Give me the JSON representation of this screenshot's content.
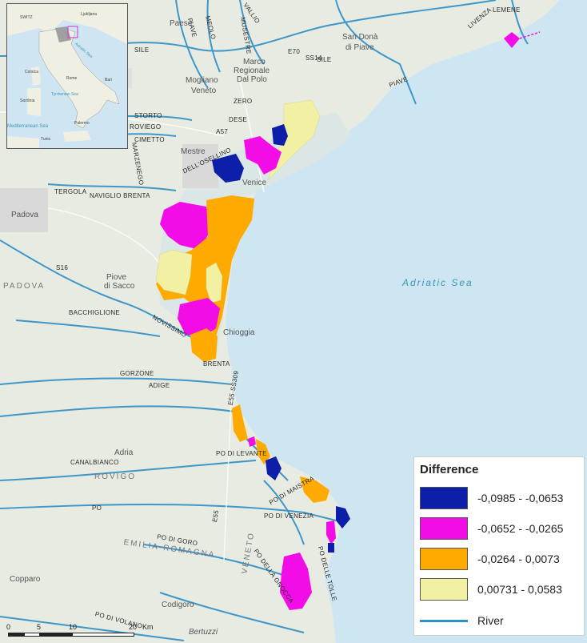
{
  "map": {
    "sea_label": "Adriatic Sea",
    "places": {
      "paese": "Paese",
      "san_dona": "San Donà",
      "di_piave": "di Piave",
      "mogliano": "Mogliano",
      "veneto": "Veneto",
      "marco": "Marco",
      "regionale": "Regionale",
      "dal_polo": "Dal Polo",
      "mestre": "Mestre",
      "venice": "Venice",
      "padova_city": "Padova",
      "piove": "Piove",
      "di_sacco": "di Sacco",
      "chioggia": "Chioggia",
      "adria": "Adria",
      "rovigo_city": "Rovigo",
      "copparo": "Copparo",
      "codigoro": "Codigoro",
      "bertuzzi": "Bertuzzi"
    },
    "regions": {
      "padova": "PADOVA",
      "rovigo": "ROVIGO",
      "emilia_romagna": "EMILIA-ROMAGNA",
      "veneto": "VENETO"
    },
    "rivers": {
      "vallio": "VALLIO",
      "musestre": "MUSESTRE",
      "meolo": "MEOLO",
      "piave_vecchia": "PIAVE",
      "piave": "PIAVE",
      "sile": "SILE",
      "sile2": "SILE",
      "zero": "ZERO",
      "dese": "DESE",
      "storto": "STORTO",
      "roviego": "ROVIEGO",
      "cimetto": "CIMETTO",
      "marzenego": "MARZENEGO",
      "osellino": "DELL'OSELLINO",
      "tergola": "TERGOLA",
      "naviglio_brenta": "NAVIGLIO BRENTA",
      "bacchiglione": "BACCHIGLIONE",
      "novissimo": "NOVISSIMO",
      "brenta": "BRENTA",
      "gorzone": "GORZONE",
      "adige": "ADIGE",
      "canalbianco": "CANALBIANCO",
      "po_levante": "PO DI LEVANTE",
      "po_maistra": "PO DI MAISTRA",
      "po_venezia": "PO DI VENEZIA",
      "po": "PO",
      "po_goro": "PO DI GORO",
      "po_gnocca": "PO DELLA GNOCCA",
      "po_tolle": "PO DELLE TOLLE",
      "po_volano": "PO DI VOLANO",
      "livenza": "LIVENZA",
      "lemene": "LEMENE",
      "e55": "E55",
      "e55b": "E55·SS309",
      "a57": "A57",
      "a4": "E70",
      "ss14": "SS14",
      "s16": "S16"
    }
  },
  "inset": {
    "labels": {
      "switz": "SWITZ",
      "ljubljana": "Ljubljana",
      "corsica": "Corsica",
      "sardinia": "Sardinia",
      "tyrrhenian": "Tyrrhenian Sea",
      "mediterranean": "Mediterranean Sea",
      "rome": "Rome",
      "bari": "Bari",
      "palermo": "Palermo",
      "tunis": "Tunis",
      "adriatic": "Adriatic Sea"
    }
  },
  "legend": {
    "title": "Difference",
    "items": [
      {
        "label": "-0,0985 - -0,0653",
        "color": "#0d1ea8"
      },
      {
        "label": "-0,0652 - -0,0265",
        "color": "#f20de6"
      },
      {
        "label": "-0,0264 - 0,0073",
        "color": "#ffaa00"
      },
      {
        "label": "0,00731 - 0,0583",
        "color": "#f2f0a2"
      }
    ],
    "river_label": "River",
    "river_color": "#2f8fc7"
  },
  "scalebar": {
    "ticks": [
      "0",
      "5",
      "10",
      "20"
    ],
    "unit": "Km"
  }
}
